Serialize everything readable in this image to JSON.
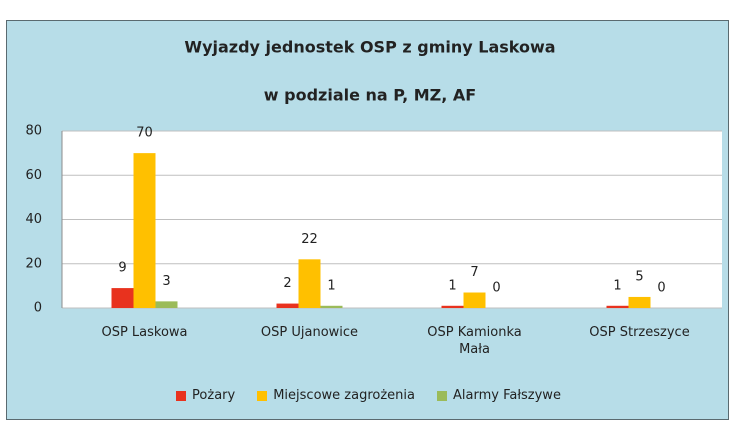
{
  "chart_data": {
    "type": "bar",
    "title": "Wyjazdy jednostek OSP z gminy Laskowa",
    "subtitle": "w podziale na P, MZ, AF",
    "categories": [
      "OSP Laskowa",
      "OSP Ujanowice",
      "OSP Kamionka Mała",
      "OSP Strzeszyce"
    ],
    "series": [
      {
        "name": "Pożary",
        "color": "#e8321e",
        "values": [
          9,
          2,
          1,
          1
        ]
      },
      {
        "name": "Miejscowe zagrożenia",
        "color": "#ffc000",
        "values": [
          70,
          22,
          7,
          5
        ]
      },
      {
        "name": "Alarmy Fałszywe",
        "color": "#9bbb59",
        "values": [
          3,
          1,
          0,
          0
        ]
      }
    ],
    "ylim": [
      0,
      80
    ],
    "yticks": [
      0,
      20,
      40,
      60,
      80
    ],
    "grid": true,
    "legend": "bottom"
  }
}
